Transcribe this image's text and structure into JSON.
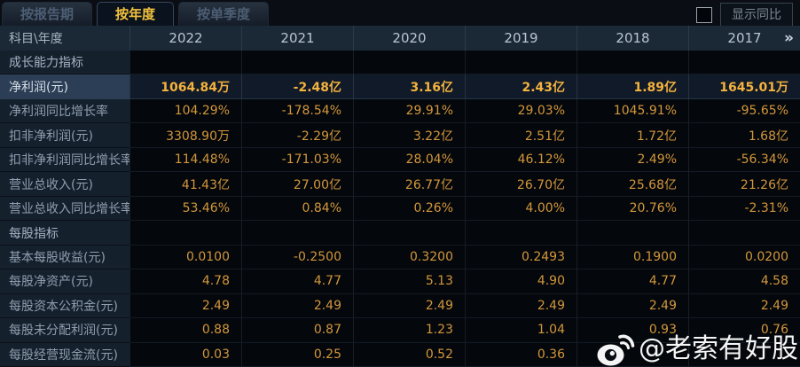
{
  "tabs": [
    {
      "name": "by-report-period",
      "label": "按报告期",
      "active": false
    },
    {
      "name": "by-year",
      "label": "按年度",
      "active": true
    },
    {
      "name": "by-quarter",
      "label": "按单季度",
      "active": false
    }
  ],
  "controls": {
    "show_yoy_label": "显示同比",
    "show_yoy_checked": false
  },
  "table": {
    "corner_header": "科目\\年度",
    "year_columns": [
      "2022",
      "2021",
      "2020",
      "2019",
      "2018",
      "2017"
    ],
    "more_icon": "»",
    "rows": [
      {
        "type": "section",
        "label": "成长能力指标"
      },
      {
        "type": "data",
        "label": "净利润(元)",
        "highlight": true,
        "values": [
          "1064.84万",
          "-2.48亿",
          "3.16亿",
          "2.43亿",
          "1.89亿",
          "1645.01万"
        ]
      },
      {
        "type": "data",
        "label": "净利润同比增长率",
        "values": [
          "104.29%",
          "-178.54%",
          "29.91%",
          "29.03%",
          "1045.91%",
          "-95.65%"
        ]
      },
      {
        "type": "data",
        "label": "扣非净利润(元)",
        "values": [
          "3308.90万",
          "-2.29亿",
          "3.22亿",
          "2.51亿",
          "1.72亿",
          "1.68亿"
        ]
      },
      {
        "type": "data",
        "label": "扣非净利润同比增长率",
        "values": [
          "114.48%",
          "-171.03%",
          "28.04%",
          "46.12%",
          "2.49%",
          "-56.34%"
        ]
      },
      {
        "type": "data",
        "label": "营业总收入(元)",
        "values": [
          "41.43亿",
          "27.00亿",
          "26.77亿",
          "26.70亿",
          "25.68亿",
          "21.26亿"
        ]
      },
      {
        "type": "data",
        "label": "营业总收入同比增长率",
        "values": [
          "53.46%",
          "0.84%",
          "0.26%",
          "4.00%",
          "20.76%",
          "-2.31%"
        ]
      },
      {
        "type": "section",
        "label": "每股指标"
      },
      {
        "type": "data",
        "label": "基本每股收益(元)",
        "values": [
          "0.0100",
          "-0.2500",
          "0.3200",
          "0.2493",
          "0.1900",
          "0.0200"
        ]
      },
      {
        "type": "data",
        "label": "每股净资产(元)",
        "values": [
          "4.78",
          "4.77",
          "5.13",
          "4.90",
          "4.77",
          "4.58"
        ]
      },
      {
        "type": "data",
        "label": "每股资本公积金(元)",
        "values": [
          "2.49",
          "2.49",
          "2.49",
          "2.49",
          "2.49",
          "2.49"
        ]
      },
      {
        "type": "data",
        "label": "每股未分配利润(元)",
        "values": [
          "0.88",
          "0.87",
          "1.23",
          "1.04",
          "0.93",
          "0.76"
        ]
      },
      {
        "type": "data",
        "label": "每股经营现金流(元)",
        "values": [
          "0.03",
          "0.25",
          "0.52",
          "0.36",
          "",
          ""
        ]
      }
    ]
  },
  "watermark": {
    "icon": "weibo-icon",
    "text": "@老索有好股"
  },
  "colors": {
    "value_gold": "#d3973c",
    "highlight_value_gold": "#f4b23e",
    "tab_active_text": "#f2c23d",
    "header_row_bg": "#1b2836",
    "label_col_bg": "#15202d",
    "highlight_label_bg": "#2c3e55",
    "page_bg": "#0a0d13"
  }
}
